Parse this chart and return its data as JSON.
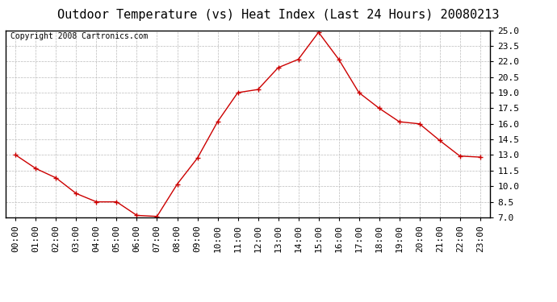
{
  "title": "Outdoor Temperature (vs) Heat Index (Last 24 Hours) 20080213",
  "copyright_text": "Copyright 2008 Cartronics.com",
  "x_labels": [
    "00:00",
    "01:00",
    "02:00",
    "03:00",
    "04:00",
    "05:00",
    "06:00",
    "07:00",
    "08:00",
    "09:00",
    "10:00",
    "11:00",
    "12:00",
    "13:00",
    "14:00",
    "15:00",
    "16:00",
    "17:00",
    "18:00",
    "19:00",
    "20:00",
    "21:00",
    "22:00",
    "23:00"
  ],
  "y_values": [
    13.0,
    11.7,
    10.8,
    9.3,
    8.5,
    8.5,
    7.2,
    7.1,
    10.2,
    12.7,
    16.2,
    19.0,
    19.3,
    21.4,
    22.2,
    24.8,
    22.2,
    19.0,
    17.5,
    16.2,
    16.0,
    14.4,
    12.9,
    12.8
  ],
  "line_color": "#cc0000",
  "marker": "+",
  "marker_size": 5,
  "marker_color": "#cc0000",
  "bg_color": "#ffffff",
  "plot_bg_color": "#ffffff",
  "grid_color": "#bbbbbb",
  "grid_style": "--",
  "ylim": [
    7.0,
    25.0
  ],
  "yticks": [
    7.0,
    8.5,
    10.0,
    11.5,
    13.0,
    14.5,
    16.0,
    17.5,
    19.0,
    20.5,
    22.0,
    23.5,
    25.0
  ],
  "title_fontsize": 11,
  "tick_fontsize": 8,
  "copyright_fontsize": 7
}
